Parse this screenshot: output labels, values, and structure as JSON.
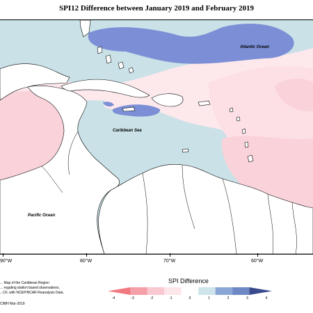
{
  "title": "SPI12 Difference between January 2019 and February 2019",
  "ocean_labels": {
    "atlantic": "Atlantic Ocean",
    "caribbean": "Caribbean Sea",
    "pacific": "Pacific Ocean"
  },
  "longitude_labels": [
    "90°W",
    "80°W",
    "70°W",
    "60°W"
  ],
  "notes": {
    "line1": "... Map of the Caribbean Region",
    "line2": "... regating station based observations,",
    "line3": "...CF, with NCEP/NCAR Reanalysis Data.",
    "credit": "CIMH Mar-2019"
  },
  "legend": {
    "title": "SPI Difference",
    "ticks": [
      "-4",
      "-3",
      "-2",
      "-1",
      "0",
      "1",
      "2",
      "3",
      "4"
    ],
    "colors": [
      "#f07880",
      "#f5a0a8",
      "#fac8d0",
      "#fde6ea",
      "#ffffff",
      "#cce4ea",
      "#8aa6d6",
      "#6e88c4",
      "#3a4a8c"
    ]
  },
  "colors": {
    "strong_positive": "#7c8fd6",
    "mild_positive": "#c9e1e7",
    "neutral": "#ffffff",
    "mild_negative": "#fde8ec",
    "moderate_negative": "#fad2da",
    "land_outline": "#000000"
  }
}
